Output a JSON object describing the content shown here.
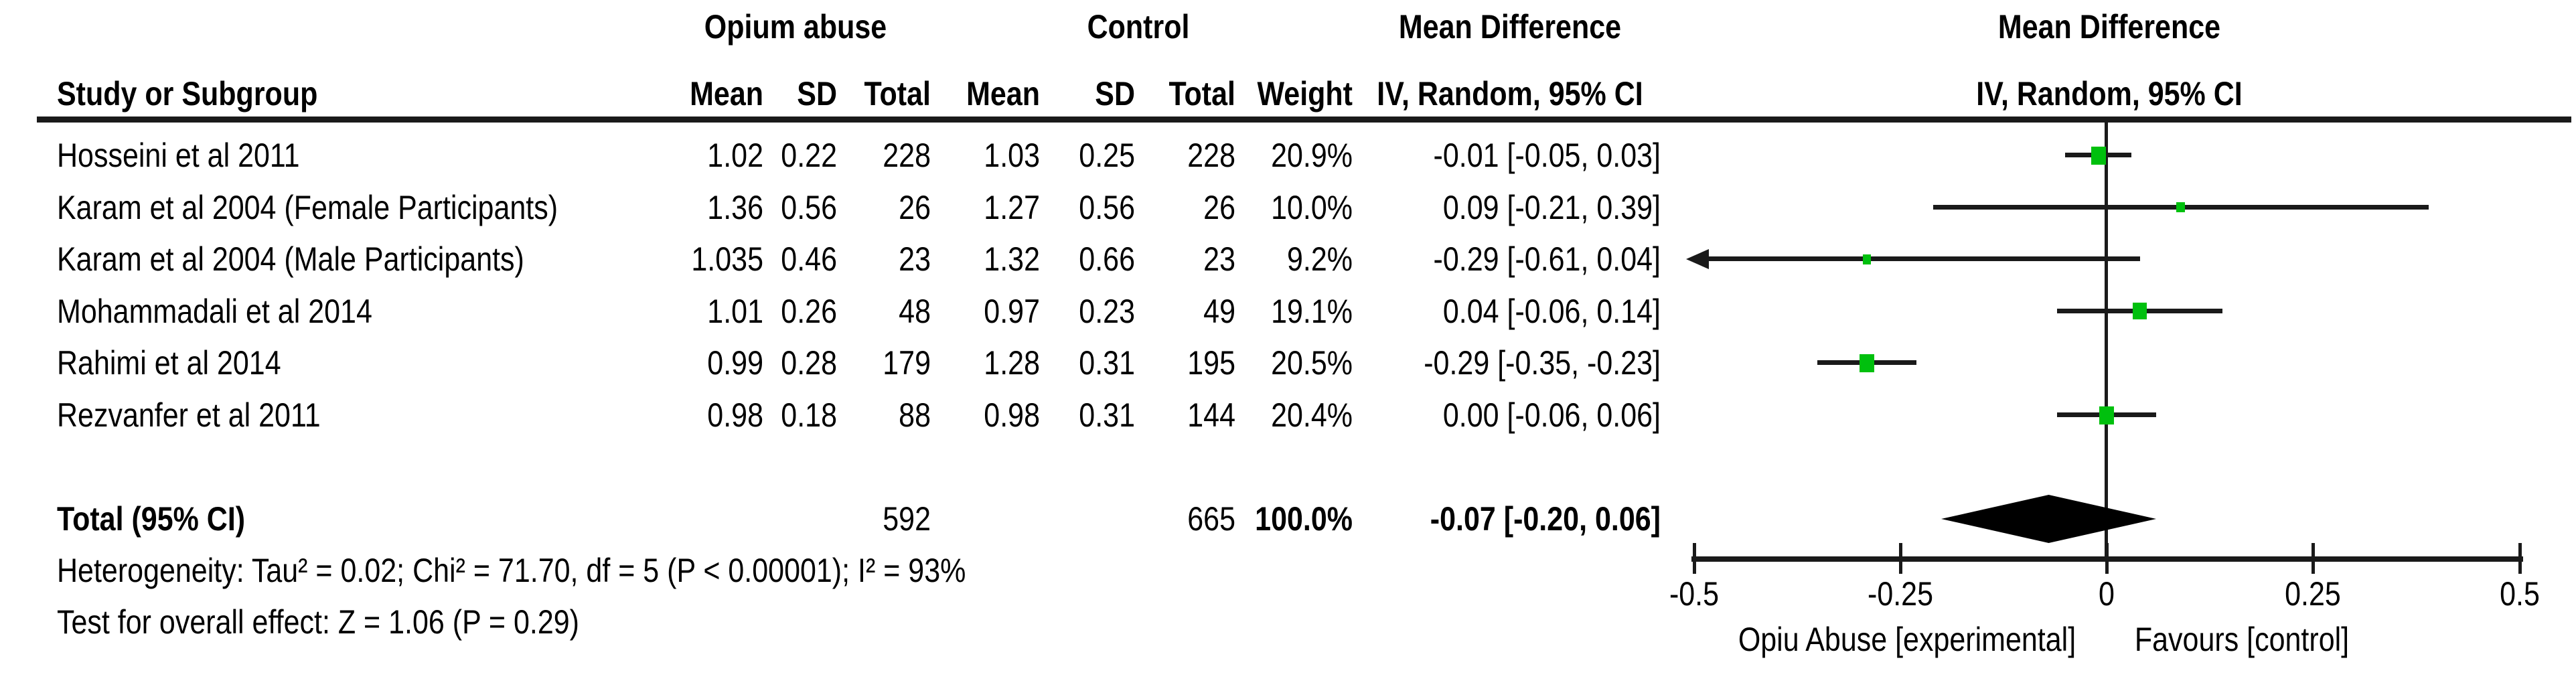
{
  "header": {
    "group1": "Opium abuse",
    "group2": "Control",
    "md_left": "Mean Difference",
    "md_right": "Mean Difference",
    "study_col": "Study or Subgroup",
    "mean_col": "Mean",
    "sd_col": "SD",
    "total_col": "Total",
    "weight_col": "Weight",
    "ci_col_left": "IV, Random, 95% CI",
    "ci_col_right": "IV, Random, 95% CI"
  },
  "studies": [
    {
      "name": "Hosseini et al 2011",
      "mean1": "1.02",
      "sd1": "0.22",
      "total1": "228",
      "mean2": "1.03",
      "sd2": "0.25",
      "total2": "228",
      "weight": "20.9%",
      "ci_text": "-0.01 [-0.05, 0.03]",
      "est": -0.01,
      "lo": -0.05,
      "hi": 0.03,
      "weight_val": 20.9
    },
    {
      "name": "Karam et al 2004 (Female Participants)",
      "mean1": "1.36",
      "sd1": "0.56",
      "total1": "26",
      "mean2": "1.27",
      "sd2": "0.56",
      "total2": "26",
      "weight": "10.0%",
      "ci_text": "0.09 [-0.21, 0.39]",
      "est": 0.09,
      "lo": -0.21,
      "hi": 0.39,
      "weight_val": 10.0
    },
    {
      "name": "Karam et al 2004 (Male Participants)",
      "mean1": "1.035",
      "sd1": "0.46",
      "total1": "23",
      "mean2": "1.32",
      "sd2": "0.66",
      "total2": "23",
      "weight": "9.2%",
      "ci_text": "-0.29 [-0.61, 0.04]",
      "est": -0.29,
      "lo": -0.61,
      "hi": 0.04,
      "weight_val": 9.2
    },
    {
      "name": "Mohammadali et al 2014",
      "mean1": "1.01",
      "sd1": "0.26",
      "total1": "48",
      "mean2": "0.97",
      "sd2": "0.23",
      "total2": "49",
      "weight": "19.1%",
      "ci_text": "0.04 [-0.06, 0.14]",
      "est": 0.04,
      "lo": -0.06,
      "hi": 0.14,
      "weight_val": 19.1
    },
    {
      "name": "Rahimi et al 2014",
      "mean1": "0.99",
      "sd1": "0.28",
      "total1": "179",
      "mean2": "1.28",
      "sd2": "0.31",
      "total2": "195",
      "weight": "20.5%",
      "ci_text": "-0.29 [-0.35, -0.23]",
      "est": -0.29,
      "lo": -0.35,
      "hi": -0.23,
      "weight_val": 20.5
    },
    {
      "name": "Rezvanfer et al 2011",
      "mean1": "0.98",
      "sd1": "0.18",
      "total1": "88",
      "mean2": "0.98",
      "sd2": "0.31",
      "total2": "144",
      "weight": "20.4%",
      "ci_text": "0.00 [-0.06, 0.06]",
      "est": 0.0,
      "lo": -0.06,
      "hi": 0.06,
      "weight_val": 20.4
    }
  ],
  "totals": {
    "label": "Total (95% CI)",
    "total1": "592",
    "total2": "665",
    "weight": "100.0%",
    "ci_text": "-0.07 [-0.20, 0.06]",
    "est": -0.07,
    "lo": -0.2,
    "hi": 0.06
  },
  "footnotes": {
    "heterogeneity": "Heterogeneity: Tau² = 0.02; Chi² = 71.70, df = 5 (P < 0.00001); I² = 93%",
    "overall_effect": "Test for overall effect: Z = 1.06 (P = 0.29)"
  },
  "axis": {
    "min": -0.5,
    "max": 0.5,
    "ticks": [
      -0.5,
      -0.25,
      0,
      0.25,
      0.5
    ],
    "tick_labels": [
      "-0.5",
      "-0.25",
      "0",
      "0.25",
      "0.5"
    ],
    "favours_left": "Opiu Abuse [experimental]",
    "favours_right": "Favours [control]"
  },
  "colors": {
    "marker_green": "#00c00e",
    "line_black": "#1a1a1a",
    "text_black": "#000000"
  },
  "chart_data": {
    "type": "scatter",
    "title": "Mean Difference IV, Random, 95% CI (forest plot)",
    "xlabel": "Mean Difference",
    "xlim": [
      -0.5,
      0.5
    ],
    "xticks": [
      -0.5,
      -0.25,
      0,
      0.25,
      0.5
    ],
    "grid": false,
    "x_axis_note_left": "Opiu Abuse [experimental]",
    "x_axis_note_right": "Favours [control]",
    "points": [
      {
        "study": "Hosseini et al 2011",
        "md": -0.01,
        "ci": [
          -0.05,
          0.03
        ],
        "weight_pct": 20.9
      },
      {
        "study": "Karam et al 2004 (Female Participants)",
        "md": 0.09,
        "ci": [
          -0.21,
          0.39
        ],
        "weight_pct": 10.0
      },
      {
        "study": "Karam et al 2004 (Male Participants)",
        "md": -0.29,
        "ci": [
          -0.61,
          0.04
        ],
        "weight_pct": 9.2,
        "ci_lower_off_scale": true
      },
      {
        "study": "Mohammadali et al 2014",
        "md": 0.04,
        "ci": [
          -0.06,
          0.14
        ],
        "weight_pct": 19.1
      },
      {
        "study": "Rahimi et al 2014",
        "md": -0.29,
        "ci": [
          -0.35,
          -0.23
        ],
        "weight_pct": 20.5
      },
      {
        "study": "Rezvanfer et al 2011",
        "md": 0.0,
        "ci": [
          -0.06,
          0.06
        ],
        "weight_pct": 20.4
      }
    ],
    "summary": {
      "label": "Total (95% CI)",
      "md": -0.07,
      "ci": [
        -0.2,
        0.06
      ]
    }
  }
}
